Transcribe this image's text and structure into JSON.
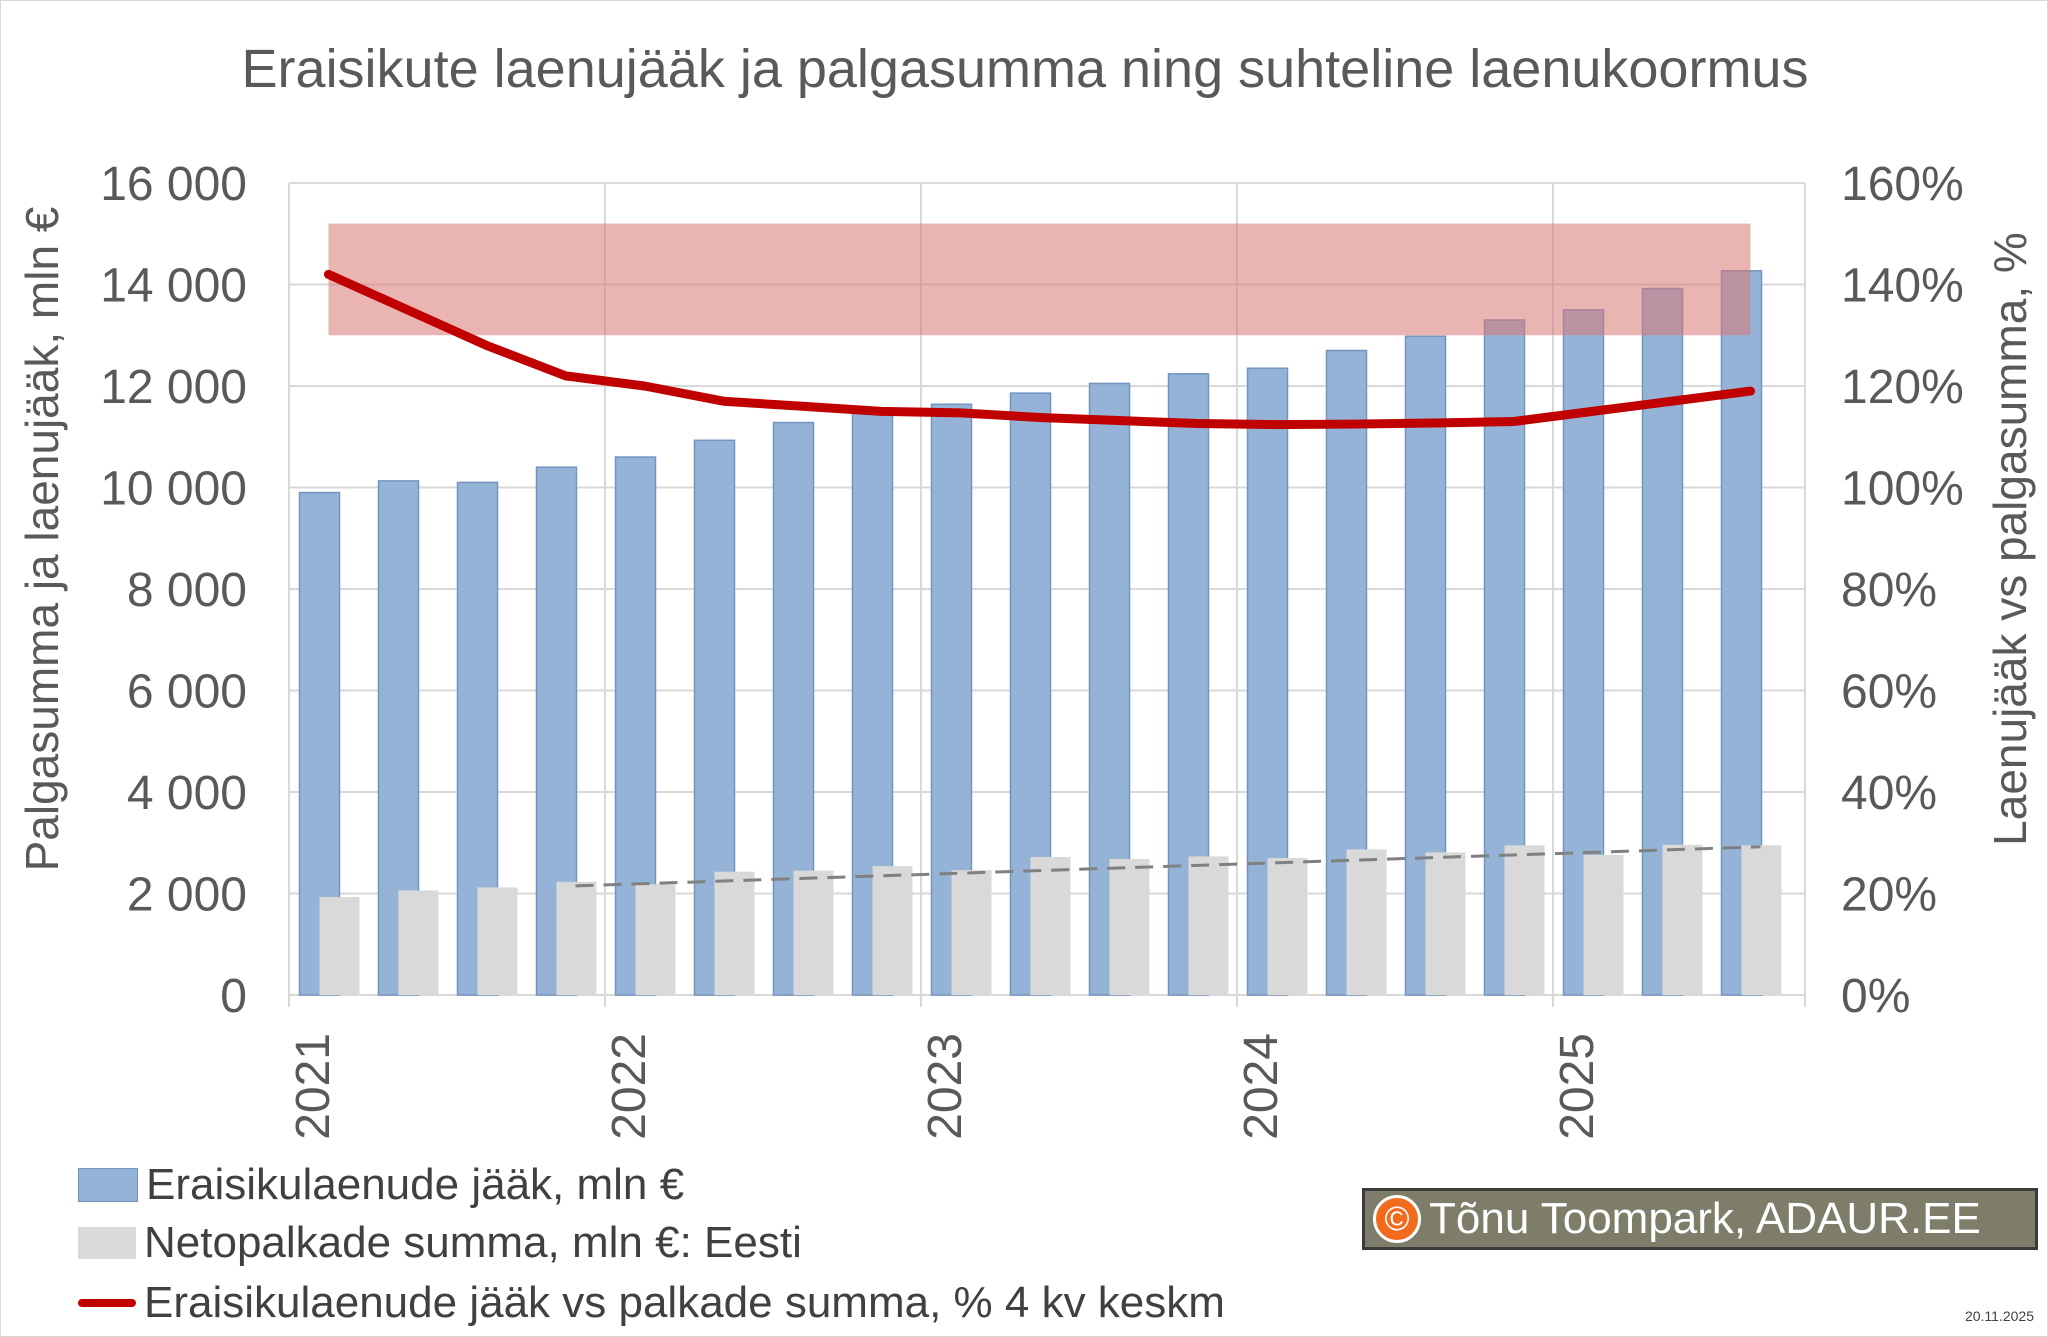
{
  "chart_data": {
    "type": "bar",
    "title": "Eraisikute laenujääk ja palgasumma ning suhteline laenukoormus",
    "ylabel": "Palgasumma ja laenujääk, mln €",
    "y2label": "Laenujääk vs palgasumma, %",
    "ylim": [
      0,
      16000
    ],
    "y2lim": [
      0,
      1.6
    ],
    "yticks": [
      "0",
      "2 000",
      "4 000",
      "6 000",
      "8 000",
      "10 000",
      "12 000",
      "14 000",
      "16 000"
    ],
    "y2ticks": [
      "0%",
      "20%",
      "40%",
      "60%",
      "80%",
      "100%",
      "120%",
      "140%",
      "160%"
    ],
    "xticks": [
      "2021",
      "2022",
      "2023",
      "2024",
      "2025"
    ],
    "categories": [
      "2021Q1",
      "2021Q2",
      "2021Q3",
      "2021Q4",
      "2022Q1",
      "2022Q2",
      "2022Q3",
      "2022Q4",
      "2023Q1",
      "2023Q2",
      "2023Q3",
      "2023Q4",
      "2024Q1",
      "2024Q2",
      "2024Q3",
      "2024Q4",
      "2025Q1",
      "2025Q2",
      "2025Q3"
    ],
    "grid": true,
    "legend_position": "bottom-left",
    "series": [
      {
        "name": "Eraisikulaenude jääk, mln €",
        "type": "bar",
        "axis": "left",
        "color": "#95b3d7",
        "values": [
          9900,
          10130,
          10100,
          10400,
          10600,
          10930,
          11280,
          11500,
          11640,
          11860,
          12050,
          12240,
          12350,
          12700,
          12980,
          13300,
          13500,
          13920,
          14270
        ]
      },
      {
        "name": "Netopalkade summa, mln €: Eesti",
        "type": "bar",
        "axis": "left",
        "color": "#d9d9d9",
        "values": [
          1930,
          2060,
          2120,
          2230,
          2180,
          2430,
          2450,
          2540,
          2460,
          2720,
          2680,
          2730,
          2700,
          2870,
          2810,
          2950,
          2760,
          2960,
          2950
        ]
      },
      {
        "name": "Eraisikulaenude jääk vs palkade summa, % 4 kv keskm",
        "type": "line",
        "axis": "right",
        "color": "#c00000",
        "values": [
          1.42,
          1.35,
          1.28,
          1.22,
          1.2,
          1.17,
          1.16,
          1.15,
          1.147,
          1.138,
          1.132,
          1.126,
          1.124,
          1.125,
          1.127,
          1.13,
          1.15,
          1.17,
          1.19
        ]
      }
    ],
    "trendline": {
      "series": "Netopalkade summa, mln €: Eesti",
      "style": "dashed",
      "color": "#808080",
      "from": "2021Q4",
      "to": "2025Q3",
      "start": 2150,
      "end": 2920
    },
    "highlight_band": {
      "axis": "right",
      "from": 1.3,
      "to": 1.52,
      "color": "#d9777480"
    }
  },
  "watermark": {
    "symbol": "©",
    "text": "Tõnu Toompark, ADAUR.EE"
  },
  "date": "20.11.2025"
}
